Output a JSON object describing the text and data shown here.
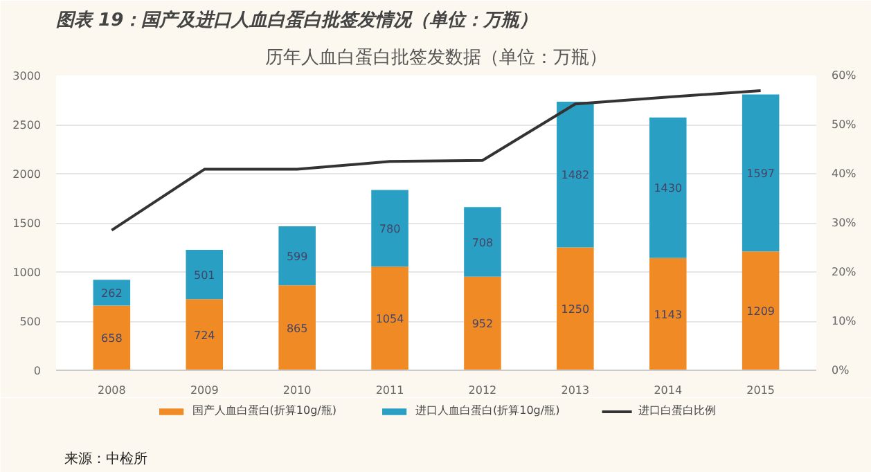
{
  "chart_data": {
    "type": "bar",
    "title": "图表 19：国产及进口人血白蛋白批签发情况（单位：万瓶）",
    "subtitle": "历年人血白蛋白批签发数据（单位：万瓶）",
    "categories": [
      "2008",
      "2009",
      "2010",
      "2011",
      "2012",
      "2013",
      "2014",
      "2015"
    ],
    "stacked": true,
    "series": [
      {
        "name": "国产人血白蛋白(折算10g/瓶)",
        "color": "#f08a24",
        "values": [
          658,
          724,
          865,
          1054,
          952,
          1250,
          1143,
          1209
        ],
        "value_labels": [
          "658",
          "724",
          "865",
          "1054",
          "952",
          "1250",
          "1143",
          "1209"
        ]
      },
      {
        "name": "进口人血白蛋白(折算10g/瓶)",
        "color": "#2a9fc4",
        "values": [
          262,
          501,
          599,
          780,
          708,
          1482,
          1430,
          1597
        ],
        "value_labels": [
          "262",
          "501",
          "599",
          "780",
          "708",
          "1482",
          "1430",
          "1597"
        ]
      },
      {
        "name": "进口白蛋白比例",
        "type": "line",
        "axis": "y2",
        "color": "#333333",
        "values": [
          28.5,
          40.9,
          40.9,
          42.5,
          42.7,
          54.2,
          55.6,
          56.9
        ]
      }
    ],
    "ylim": [
      0,
      3000
    ],
    "yticks": [
      0,
      500,
      1000,
      1500,
      2000,
      2500,
      3000
    ],
    "y2lim": [
      0,
      60
    ],
    "y2ticks": [
      {
        "value": 0,
        "label": "0%"
      },
      {
        "value": 10,
        "label": "10%"
      },
      {
        "value": 20,
        "label": "20%"
      },
      {
        "value": 30,
        "label": "30%"
      },
      {
        "value": 40,
        "label": "40%"
      },
      {
        "value": 50,
        "label": "50%"
      },
      {
        "value": 60,
        "label": "60%"
      }
    ],
    "grid": "y",
    "legend": "bottom",
    "marker": "none",
    "line_style": "solid",
    "annotations": [
      "来源：中检所"
    ]
  }
}
